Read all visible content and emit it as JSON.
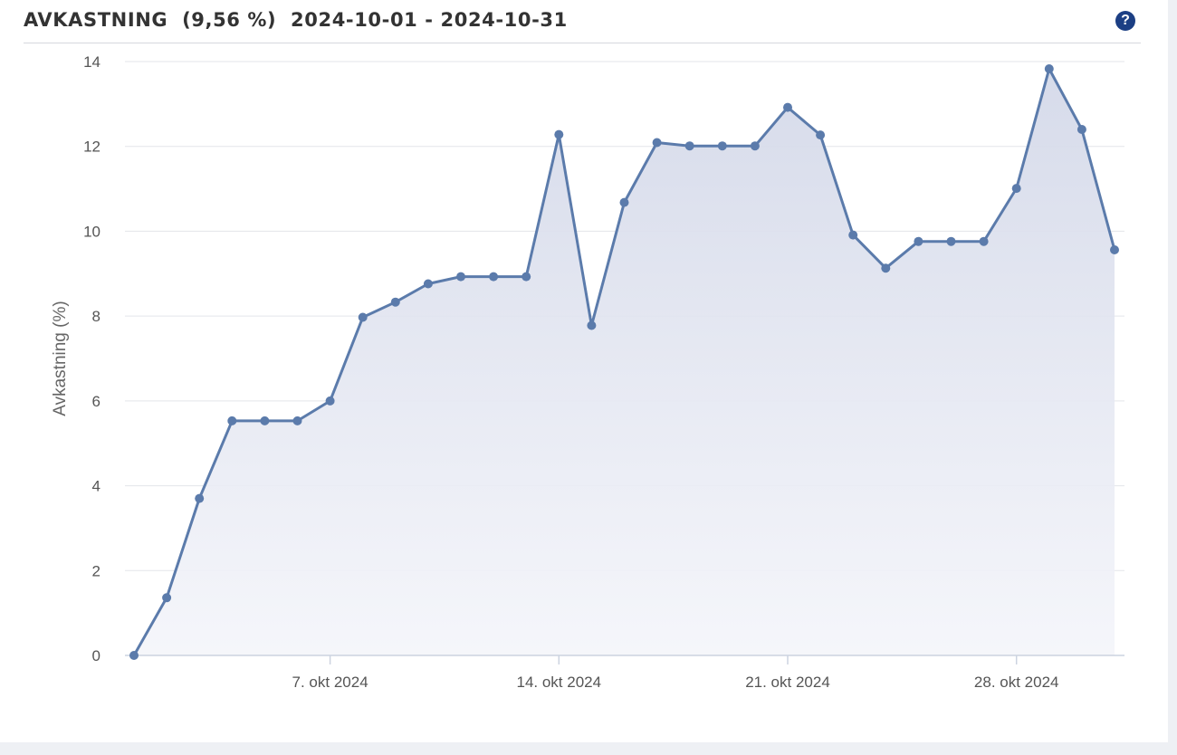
{
  "widget": {
    "title": "AVKASTNING  (9,56 %)  2024-10-01 - 2024-10-31",
    "help_icon": "help-icon",
    "help_glyph": "?",
    "accent_color": "#5b7bab",
    "help_color": "#1c3f84"
  },
  "chart_data": {
    "type": "area",
    "title": "AVKASTNING  (9,56 %)  2024-10-01 - 2024-10-31",
    "xlabel": "",
    "ylabel": "Avkastning (%)",
    "ylim": [
      0,
      14
    ],
    "yticks": [
      0,
      2,
      4,
      6,
      8,
      10,
      12,
      14
    ],
    "xticks": [
      {
        "date": "2024-10-07",
        "label": "7. okt 2024"
      },
      {
        "date": "2024-10-14",
        "label": "14. okt 2024"
      },
      {
        "date": "2024-10-21",
        "label": "21. okt 2024"
      },
      {
        "date": "2024-10-28",
        "label": "28. okt 2024"
      }
    ],
    "xlim": [
      "2024-10-01",
      "2024-10-31"
    ],
    "grid": true,
    "series": [
      {
        "color": "#5b7bab",
        "points": [
          {
            "date": "2024-10-01",
            "value": 0.0
          },
          {
            "date": "2024-10-02",
            "value": 1.36
          },
          {
            "date": "2024-10-03",
            "value": 3.7
          },
          {
            "date": "2024-10-04",
            "value": 5.53
          },
          {
            "date": "2024-10-05",
            "value": 5.53
          },
          {
            "date": "2024-10-06",
            "value": 5.53
          },
          {
            "date": "2024-10-07",
            "value": 6.0
          },
          {
            "date": "2024-10-08",
            "value": 7.97
          },
          {
            "date": "2024-10-09",
            "value": 8.33
          },
          {
            "date": "2024-10-10",
            "value": 8.76
          },
          {
            "date": "2024-10-11",
            "value": 8.93
          },
          {
            "date": "2024-10-12",
            "value": 8.93
          },
          {
            "date": "2024-10-13",
            "value": 8.93
          },
          {
            "date": "2024-10-14",
            "value": 12.28
          },
          {
            "date": "2024-10-15",
            "value": 7.78
          },
          {
            "date": "2024-10-16",
            "value": 10.68
          },
          {
            "date": "2024-10-17",
            "value": 12.09
          },
          {
            "date": "2024-10-18",
            "value": 12.01
          },
          {
            "date": "2024-10-19",
            "value": 12.01
          },
          {
            "date": "2024-10-20",
            "value": 12.01
          },
          {
            "date": "2024-10-21",
            "value": 12.92
          },
          {
            "date": "2024-10-22",
            "value": 12.27
          },
          {
            "date": "2024-10-23",
            "value": 9.91
          },
          {
            "date": "2024-10-24",
            "value": 9.13
          },
          {
            "date": "2024-10-25",
            "value": 9.76
          },
          {
            "date": "2024-10-26",
            "value": 9.76
          },
          {
            "date": "2024-10-27",
            "value": 9.76
          },
          {
            "date": "2024-10-28",
            "value": 11.01
          },
          {
            "date": "2024-10-29",
            "value": 13.83
          },
          {
            "date": "2024-10-30",
            "value": 12.4
          },
          {
            "date": "2024-10-31",
            "value": 9.56
          }
        ]
      }
    ]
  }
}
